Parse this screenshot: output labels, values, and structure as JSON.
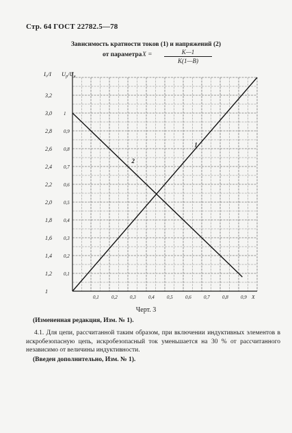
{
  "header": {
    "page_ref": "Стр. 64 ГОСТ 22782.5—78"
  },
  "chart_data": {
    "type": "line",
    "title": "Зависимость кратности токов (1) и напряжений (2)",
    "subtitle_prefix": "от параметра",
    "formula": {
      "lhs": "X =",
      "numerator": "K—1",
      "denominator": "K(1—B)"
    },
    "left_axis_label": "I₀/I",
    "right_axis_label": "Uр/Uн",
    "right_axis_label_parts": {
      "base": "U",
      "sub1": "р",
      "sep": "/",
      "base2": "U",
      "sub2": "н"
    },
    "x_label": "X",
    "x_ticks": [
      "0,1",
      "0,2",
      "0,3",
      "0,4",
      "0,5",
      "0,6",
      "0,7",
      "0,8",
      "0,9"
    ],
    "x_range": [
      0,
      1
    ],
    "y_left_ticks": [
      "1",
      "1,2",
      "1,4",
      "1,6",
      "1,8",
      "2,0",
      "2,2",
      "2,4",
      "2,6",
      "2,8",
      "3,0",
      "3,2",
      "I₀/I"
    ],
    "y_left_range": [
      1,
      3.4
    ],
    "y_right_ticks": [
      "0,1",
      "0,2",
      "0,3",
      "0,4",
      "0,5",
      "0,6",
      "0,7",
      "0,8",
      "0,9",
      "1"
    ],
    "y_right_range": [
      0,
      1.2
    ],
    "grid": true,
    "series": [
      {
        "name": "1",
        "axis": "left",
        "x": [
          0,
          1.0
        ],
        "y": [
          1.0,
          3.4
        ]
      },
      {
        "name": "2",
        "axis": "right",
        "x": [
          0,
          0.92
        ],
        "y": [
          1.0,
          0.08
        ]
      }
    ],
    "series_labels": [
      {
        "text": "1",
        "x": 0.66,
        "y_left": 2.62
      },
      {
        "text": "2",
        "x": 0.32,
        "y_left": 2.44
      }
    ]
  },
  "caption": "Черт. 3",
  "notes": {
    "note1": "(Измененная редакция, Изм. № 1).",
    "paragraph": "4.1. Для цепи, рассчитанной таким образом, при включении индуктивных элементов в искробезопасную цепь, искробезопасный ток уменьшается на 30 % от рассчитанного независимо от величины индуктивности.",
    "note2": "(Введен дополнительно, Изм. № 1)."
  }
}
